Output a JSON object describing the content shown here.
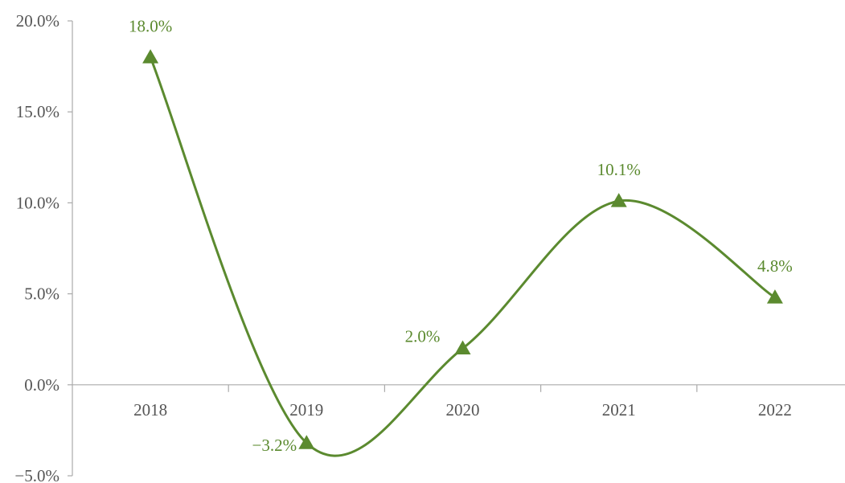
{
  "chart_data": {
    "type": "line",
    "categories": [
      "2018",
      "2019",
      "2020",
      "2021",
      "2022"
    ],
    "series": [
      {
        "values": [
          18.0,
          -3.2,
          2.0,
          10.1,
          4.8
        ],
        "color": "#5b8a2f",
        "marker": "triangle",
        "smooth": true
      }
    ],
    "data_labels": [
      "18.0%",
      "−3.2%",
      "2.0%",
      "10.1%",
      "4.8%"
    ],
    "y_ticks": [
      -5,
      0,
      5,
      10,
      15,
      20
    ],
    "y_tick_labels": [
      "−5.0%",
      "0.0%",
      "5.0%",
      "10.0%",
      "15.0%",
      "20.0%"
    ],
    "ylim": [
      -5,
      20
    ],
    "title": "",
    "xlabel": "",
    "ylabel": "",
    "grid": false,
    "legend": "none"
  }
}
